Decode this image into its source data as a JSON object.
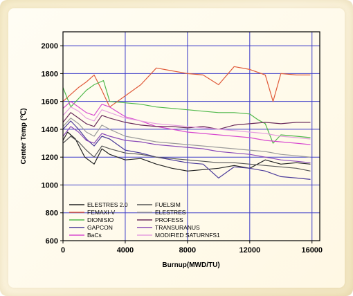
{
  "chart_data": {
    "type": "line",
    "title": "",
    "xlabel": "Burnup(MWD/TU)",
    "ylabel": "Center Temp (℃)",
    "xlim": [
      0,
      16500
    ],
    "ylim": [
      600,
      2100
    ],
    "xticks": [
      "0",
      "4000",
      "8000",
      "12000",
      "16000"
    ],
    "yticks": [
      "600",
      "800",
      "1000",
      "1200",
      "1400",
      "1600",
      "1800",
      "2000"
    ],
    "grid": true,
    "legend_position": "bottom-left",
    "series": [
      {
        "name": "ELESTRES 2.0",
        "color": "#222222",
        "x": [
          0,
          300,
          800,
          1400,
          2000,
          2500,
          3000,
          4000,
          5000,
          6000,
          7000,
          8000,
          9000,
          10000,
          11000,
          12000,
          13000,
          14000,
          15000,
          15900
        ],
        "y": [
          1320,
          1380,
          1330,
          1200,
          1150,
          1260,
          1220,
          1180,
          1190,
          1150,
          1120,
          1100,
          1110,
          1120,
          1140,
          1120,
          1180,
          1150,
          1160,
          1150
        ]
      },
      {
        "name": "FEMAXI-V",
        "color": "#e05a3a",
        "x": [
          0,
          500,
          1000,
          1500,
          2000,
          2500,
          3000,
          4000,
          5000,
          6000,
          7000,
          8000,
          9000,
          10000,
          11000,
          12000,
          13000,
          13500,
          14000,
          15000,
          15900
        ],
        "y": [
          1600,
          1650,
          1700,
          1740,
          1790,
          1680,
          1560,
          1640,
          1720,
          1840,
          1820,
          1800,
          1790,
          1720,
          1850,
          1830,
          1790,
          1600,
          1800,
          1790,
          1790
        ]
      },
      {
        "name": "DIONISIO",
        "color": "#4fb84a",
        "x": [
          0,
          500,
          1000,
          1500,
          2000,
          2600,
          3000,
          4000,
          5000,
          6000,
          7000,
          8000,
          9000,
          10000,
          11000,
          12000,
          12500,
          13000,
          13500,
          14000,
          15000,
          15900
        ],
        "y": [
          1700,
          1560,
          1620,
          1680,
          1720,
          1750,
          1600,
          1590,
          1580,
          1560,
          1550,
          1540,
          1530,
          1520,
          1520,
          1510,
          1470,
          1440,
          1300,
          1360,
          1350,
          1340
        ]
      },
      {
        "name": "GAPCON",
        "color": "#4a3a9a",
        "x": [
          0,
          500,
          1000,
          1500,
          2000,
          2500,
          3000,
          4000,
          5000,
          6000,
          7000,
          8000,
          9000,
          10000,
          11000,
          12000,
          13000,
          14000,
          15000,
          15900
        ],
        "y": [
          1400,
          1460,
          1400,
          1330,
          1280,
          1350,
          1330,
          1250,
          1230,
          1200,
          1180,
          1160,
          1150,
          1050,
          1130,
          1120,
          1100,
          1060,
          1050,
          1040
        ]
      },
      {
        "name": "BaCs",
        "color": "#d84ad0",
        "x": [
          0,
          500,
          1000,
          1500,
          2000,
          2500,
          3000,
          4000,
          5000,
          6000,
          7000,
          8000,
          9000,
          10000,
          11000,
          12000,
          13000,
          14000,
          15000,
          15900
        ],
        "y": [
          1550,
          1600,
          1560,
          1520,
          1500,
          1580,
          1560,
          1490,
          1460,
          1420,
          1400,
          1380,
          1370,
          1360,
          1350,
          1340,
          1320,
          1310,
          1300,
          1290
        ]
      },
      {
        "name": "FUELSIM",
        "color": "#555555",
        "x": [
          0,
          500,
          1000,
          1500,
          2000,
          2500,
          3000,
          4000,
          5000,
          6000,
          7000,
          8000,
          9000,
          10000,
          11000,
          12000,
          13000,
          14000,
          15000,
          15900
        ],
        "y": [
          1300,
          1350,
          1310,
          1250,
          1200,
          1280,
          1260,
          1230,
          1220,
          1200,
          1190,
          1180,
          1170,
          1160,
          1160,
          1150,
          1140,
          1130,
          1120,
          1100
        ]
      },
      {
        "name": "ELESTRES",
        "color": "#9a9a9a",
        "x": [
          0,
          500,
          1000,
          1500,
          2000,
          2500,
          3000,
          4000,
          5000,
          6000,
          7000,
          8000,
          9000,
          10000,
          11000,
          12000,
          13000,
          14000,
          15000,
          15900
        ],
        "y": [
          1420,
          1480,
          1440,
          1380,
          1350,
          1430,
          1400,
          1350,
          1330,
          1310,
          1300,
          1290,
          1280,
          1270,
          1260,
          1250,
          1240,
          1220,
          1210,
          1200
        ]
      },
      {
        "name": "PROFESS",
        "color": "#6a2a5a",
        "x": [
          0,
          500,
          1000,
          1500,
          2000,
          2500,
          3000,
          4000,
          5000,
          6000,
          7000,
          8000,
          9000,
          10000,
          11000,
          12000,
          13000,
          14000,
          15000,
          15900
        ],
        "y": [
          1450,
          1520,
          1480,
          1440,
          1420,
          1500,
          1480,
          1450,
          1430,
          1420,
          1420,
          1410,
          1420,
          1400,
          1430,
          1440,
          1450,
          1440,
          1450,
          1450
        ]
      },
      {
        "name": "TRANSURANUS",
        "color": "#8a4ab8",
        "x": [
          0,
          500,
          1000,
          1500,
          2000,
          2500,
          3000,
          4000,
          5000,
          6000,
          7000,
          8000,
          9000,
          10000,
          11000,
          12000,
          13000,
          14000,
          15000,
          15900
        ],
        "y": [
          1350,
          1420,
          1380,
          1320,
          1300,
          1370,
          1350,
          1320,
          1310,
          1290,
          1280,
          1270,
          1260,
          1240,
          1230,
          1220,
          1200,
          1180,
          1170,
          1160
        ]
      },
      {
        "name": "MODIFIED SATURNFS1",
        "color": "#e6a0e0",
        "x": [
          0,
          500,
          1000,
          1500,
          2000,
          2500,
          3000,
          4000,
          5000,
          6000,
          7000,
          8000,
          9000,
          10000,
          11000,
          12000,
          13000,
          14000,
          15000,
          15900
        ],
        "y": [
          1500,
          1560,
          1530,
          1480,
          1460,
          1540,
          1520,
          1480,
          1460,
          1440,
          1430,
          1420,
          1410,
          1400,
          1390,
          1380,
          1370,
          1350,
          1340,
          1330
        ]
      }
    ]
  }
}
